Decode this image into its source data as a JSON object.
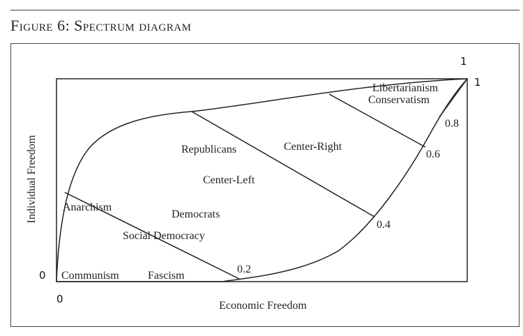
{
  "figure": {
    "title": "Figure 6: Spectrum diagram"
  },
  "axes": {
    "x_label": "Economic Freedom",
    "y_label": "Individual Freedom",
    "x_origin": "0",
    "y_origin": "0",
    "x_max": "1",
    "y_max": "1"
  },
  "boundary_ticks": [
    "0.2",
    "0.4",
    "0.6",
    "0.8"
  ],
  "regions": {
    "anarchism": "Anarchism",
    "communism": "Communism",
    "fascism": "Fascism",
    "social_democracy": "Social Democracy",
    "democrats": "Democrats",
    "center_left": "Center-Left",
    "republicans": "Republicans",
    "center_right": "Center-Right",
    "libertarianism": "Libertarianism",
    "conservatism": "Conservatism"
  }
}
